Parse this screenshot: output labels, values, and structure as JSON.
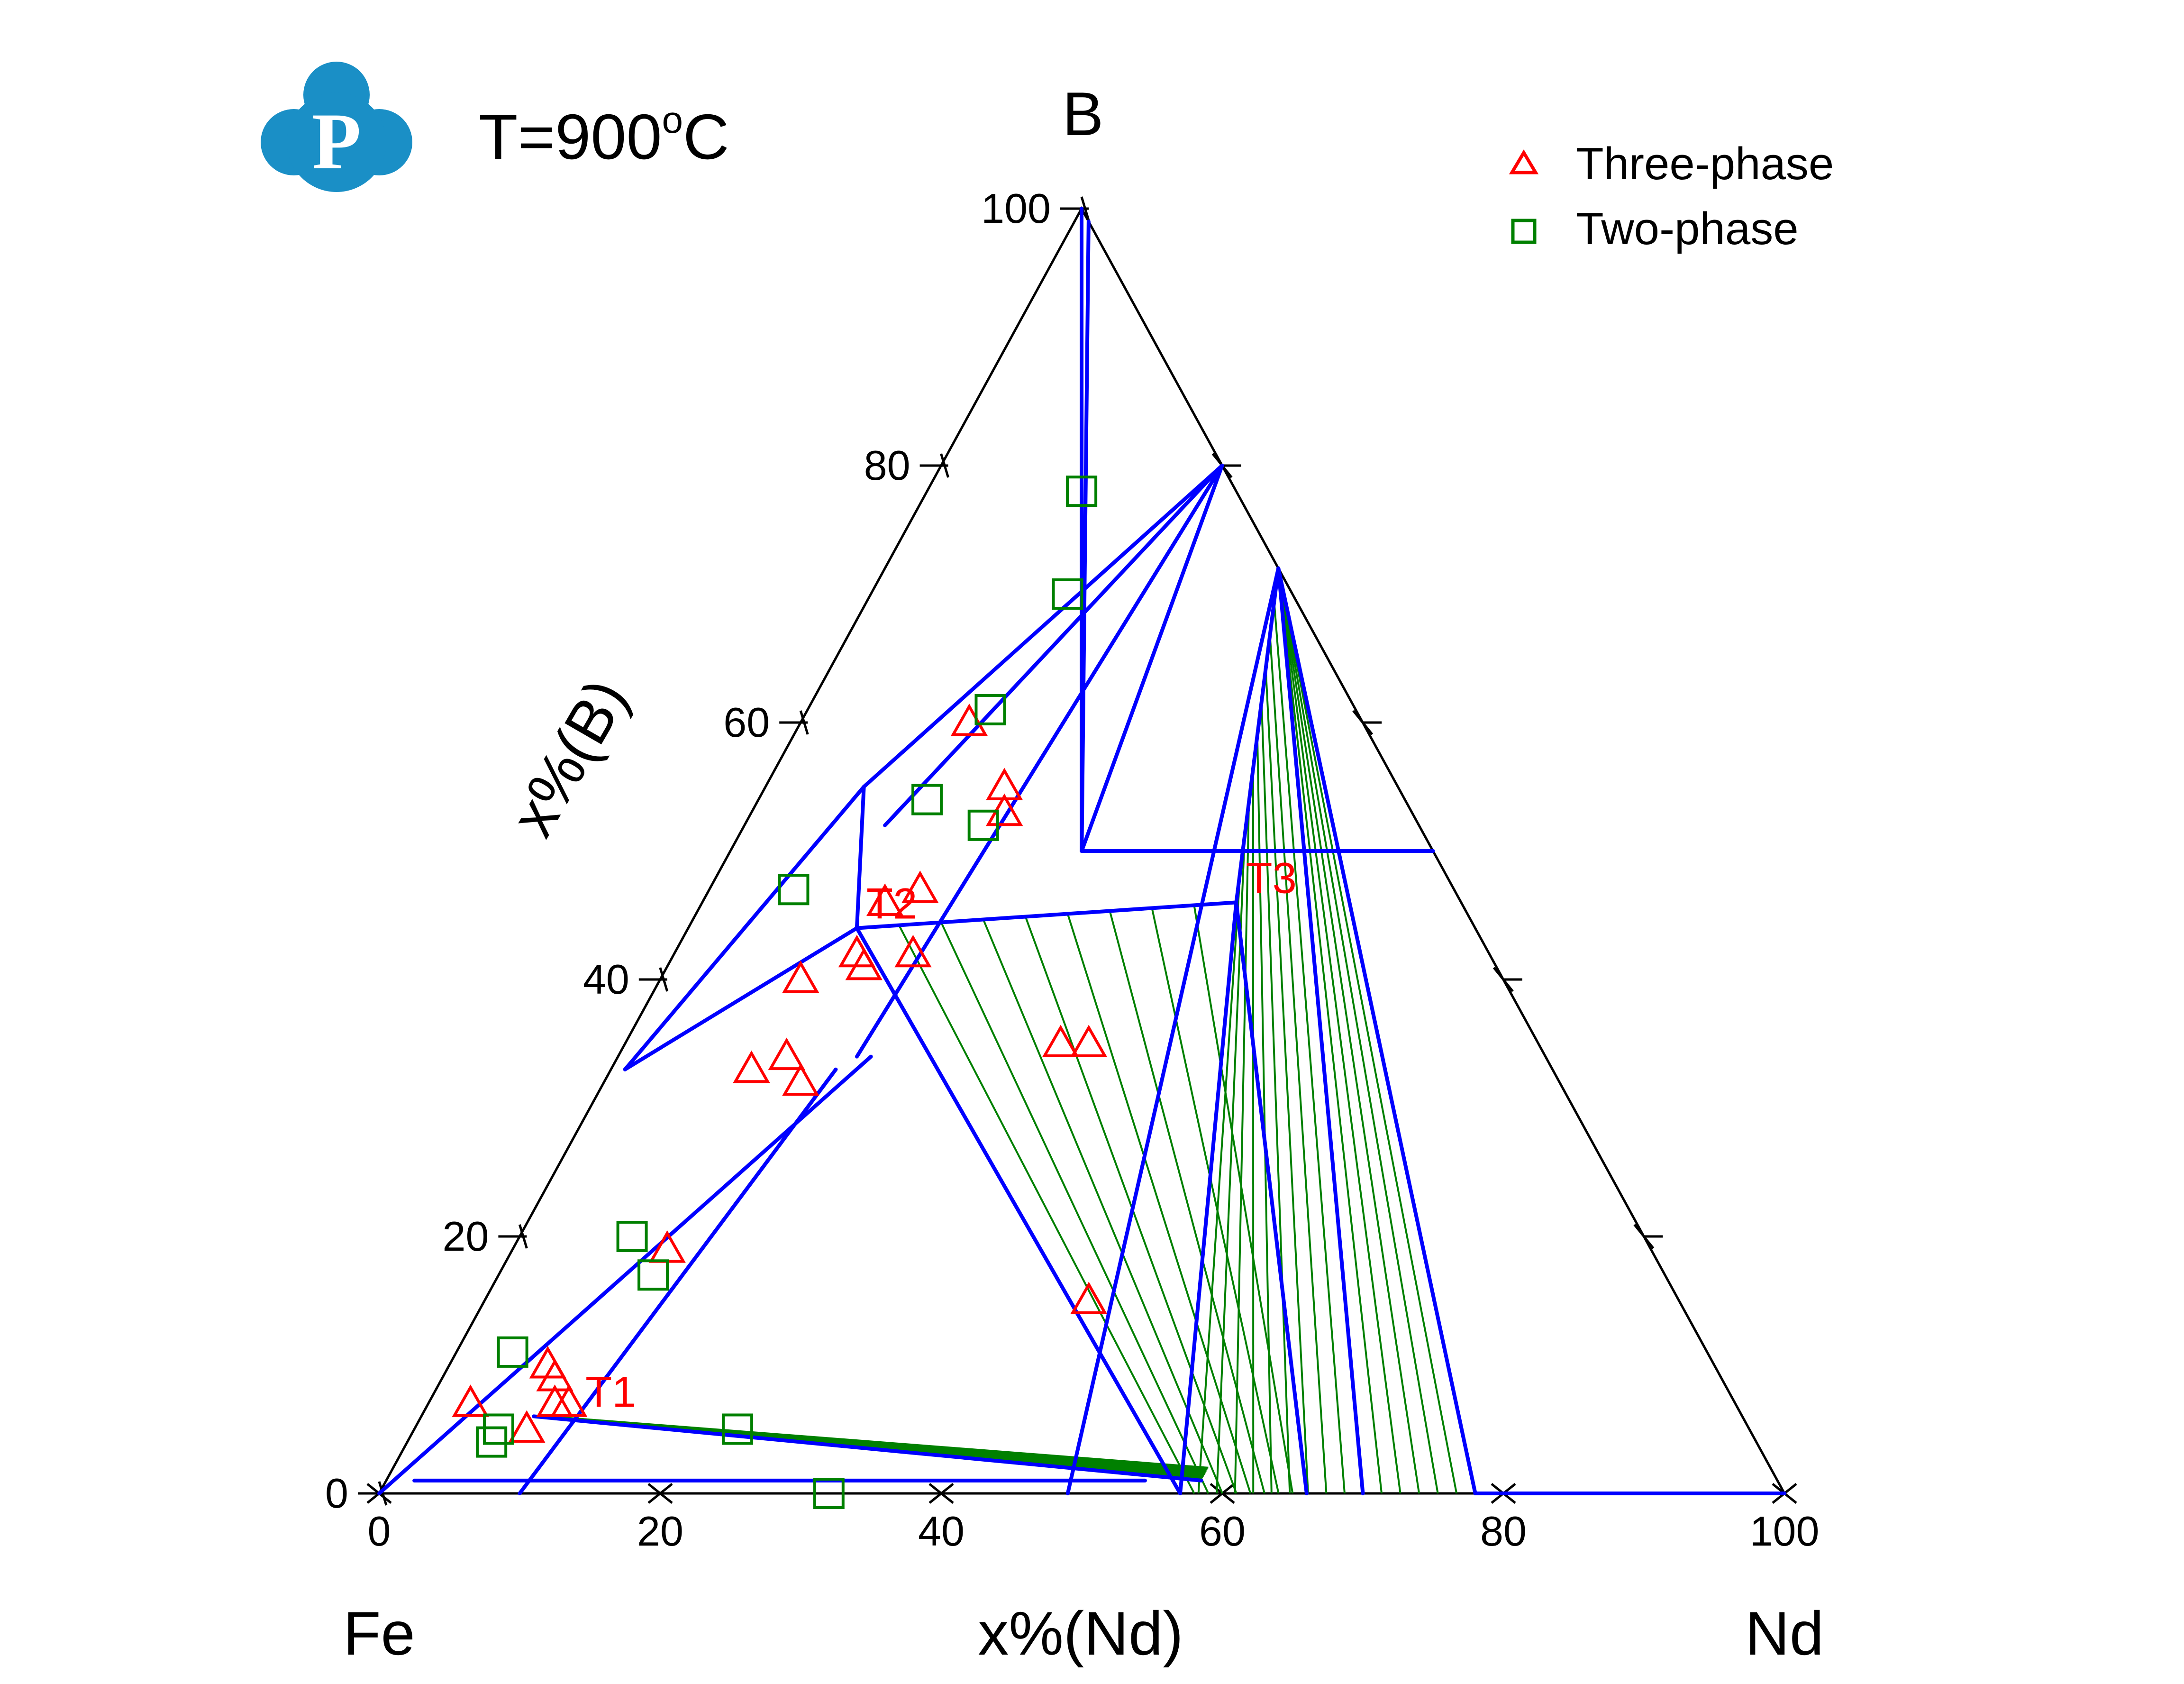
{
  "chart_data": {
    "type": "scatter",
    "subtype": "ternary",
    "temperature_label": "T=900",
    "temperature_sup": "o",
    "temperature_unit": "C",
    "corners": {
      "top": "B",
      "left": "Fe",
      "right": "Nd"
    },
    "xlabel": "x%(Nd)",
    "ylabel": "x%(B)",
    "bottom_ticks": [
      "0",
      "20",
      "40",
      "60",
      "80",
      "100"
    ],
    "left_ticks": [
      "0",
      "20",
      "40",
      "60",
      "80",
      "100"
    ],
    "right_ticks_count": 5,
    "axis_range": [
      0,
      100
    ],
    "legend": [
      {
        "name": "Three-phase",
        "marker": "triangle",
        "color": "#ff0000"
      },
      {
        "name": "Two-phase",
        "marker": "square",
        "color": "#008000"
      }
    ],
    "colors": {
      "boundary": "#0000ff",
      "tieline": "#008000",
      "frame": "#000000"
    },
    "invariant_points": [
      {
        "label": "T1",
        "nd": 11,
        "b": 6
      },
      {
        "label": "T2",
        "nd": 12,
        "b": 44
      },
      {
        "label": "T3",
        "nd": 38,
        "b": 46
      }
    ],
    "three_phase_points": [
      [
        10,
        7
      ],
      [
        7,
        10
      ],
      [
        8,
        9
      ],
      [
        9,
        7
      ],
      [
        8,
        5
      ],
      [
        3,
        7
      ],
      [
        11,
        19
      ],
      [
        10,
        33
      ],
      [
        12,
        34
      ],
      [
        14,
        32
      ],
      [
        10,
        40
      ],
      [
        13,
        42
      ],
      [
        14,
        41
      ],
      [
        17,
        42
      ],
      [
        13,
        46
      ],
      [
        15,
        47
      ],
      [
        18,
        53
      ],
      [
        12,
        60
      ],
      [
        17,
        55
      ],
      [
        31,
        35
      ],
      [
        43,
        15
      ],
      [
        33,
        35
      ]
    ],
    "two_phase_points": [
      [
        6,
        5
      ],
      [
        6,
        4
      ],
      [
        23,
        5
      ],
      [
        32,
        0
      ],
      [
        11,
        17
      ],
      [
        4,
        11
      ],
      [
        8,
        20
      ],
      [
        6,
        47
      ],
      [
        12,
        54
      ],
      [
        17,
        52
      ],
      [
        13,
        61
      ],
      [
        14,
        70
      ],
      [
        11,
        78
      ]
    ],
    "boundary_lines": [
      [
        [
          1,
          99
        ],
        [
          25,
          50
        ]
      ],
      [
        [
          0,
          100
        ],
        [
          25,
          50
        ]
      ],
      [
        [
          50,
          50
        ],
        [
          25,
          50
        ]
      ],
      [
        [
          20,
          80
        ],
        [
          25,
          50
        ]
      ],
      [
        [
          20,
          80
        ],
        [
          17,
          34
        ]
      ],
      [
        [
          20,
          80
        ],
        [
          7,
          55
        ]
      ],
      [
        [
          20,
          80
        ],
        [
          10,
          52
        ]
      ],
      [
        [
          7,
          55
        ],
        [
          1,
          33
        ]
      ],
      [
        [
          7,
          55
        ],
        [
          12,
          44
        ]
      ],
      [
        [
          12,
          44
        ],
        [
          1,
          33
        ]
      ],
      [
        [
          0,
          0
        ],
        [
          18,
          34
        ]
      ],
      [
        [
          10,
          0
        ],
        [
          16,
          33
        ]
      ],
      [
        [
          12,
          44
        ],
        [
          38,
          46
        ]
      ],
      [
        [
          12,
          44
        ],
        [
          57,
          0
        ]
      ],
      [
        [
          28,
          72
        ],
        [
          38,
          46
        ]
      ],
      [
        [
          28,
          72
        ],
        [
          49,
          0
        ]
      ],
      [
        [
          38,
          46
        ],
        [
          66,
          0
        ]
      ],
      [
        [
          38,
          46
        ],
        [
          57,
          0
        ]
      ],
      [
        [
          28,
          72
        ],
        [
          70,
          0
        ]
      ],
      [
        [
          28,
          72
        ],
        [
          78,
          0
        ]
      ],
      [
        [
          78,
          0
        ],
        [
          100,
          0
        ]
      ],
      [
        [
          8,
          6
        ],
        [
          58,
          1
        ]
      ],
      [
        [
          2,
          1
        ],
        [
          54,
          1
        ]
      ]
    ],
    "tieline_fans": [
      {
        "from": [
          [
            12,
            44
          ],
          [
            38,
            46
          ]
        ],
        "to": [
          [
            57,
            0
          ],
          [
            66,
            0
          ]
        ],
        "n": 9
      },
      {
        "from": [
          [
            38,
            46
          ],
          [
            28,
            72
          ]
        ],
        "to": [
          [
            57,
            0
          ],
          [
            70,
            0
          ]
        ],
        "n": 10
      },
      {
        "from": [
          [
            28,
            72
          ],
          [
            28,
            72
          ]
        ],
        "to": [
          [
            70,
            0
          ],
          [
            78,
            0
          ]
        ],
        "n": 6
      },
      {
        "from": [
          [
            9,
            6
          ],
          [
            9,
            6
          ]
        ],
        "to": [
          [
            58,
            2
          ],
          [
            58,
            1
          ]
        ],
        "n": 8
      }
    ],
    "grid": false
  }
}
